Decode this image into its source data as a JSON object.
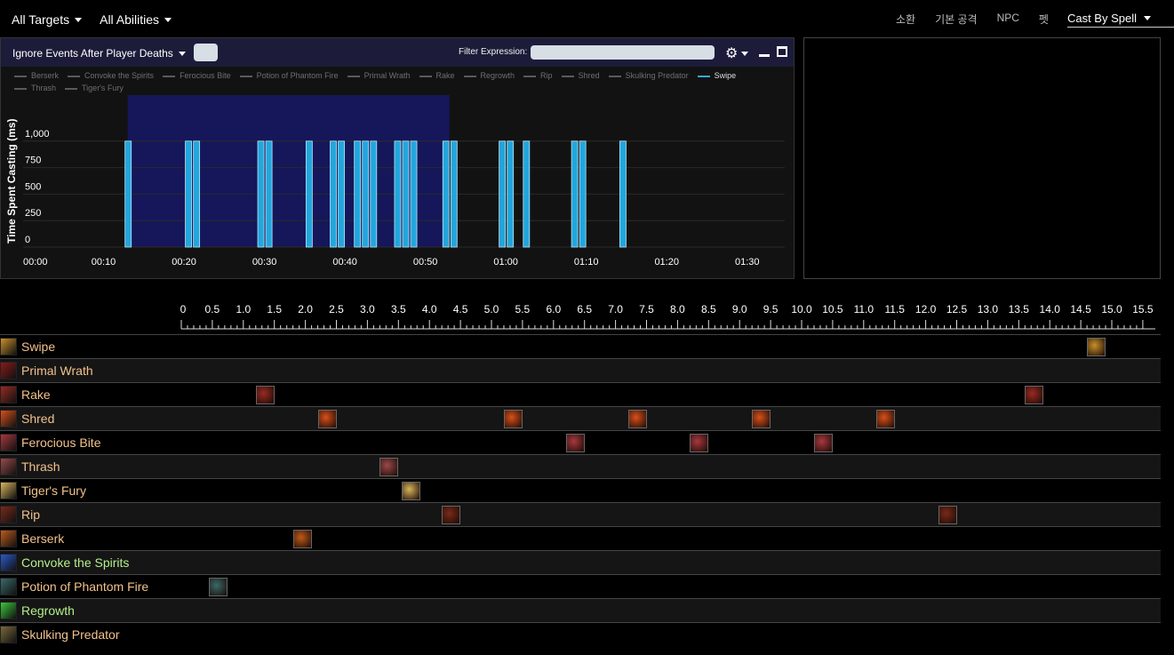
{
  "topbar": {
    "targets": "All Targets",
    "abilities": "All Abilities",
    "tabs": [
      "소환",
      "기본 공격",
      "NPC",
      "펫"
    ],
    "cast_by": "Cast By Spell"
  },
  "panel": {
    "ignore_label": "Ignore Events After Player Deaths",
    "filter_label": "Filter Expression:",
    "filter_value": ""
  },
  "legend": [
    {
      "name": "Berserk",
      "active": false
    },
    {
      "name": "Convoke the Spirits",
      "active": false
    },
    {
      "name": "Ferocious Bite",
      "active": false
    },
    {
      "name": "Potion of Phantom Fire",
      "active": false
    },
    {
      "name": "Primal Wrath",
      "active": false
    },
    {
      "name": "Rake",
      "active": false
    },
    {
      "name": "Regrowth",
      "active": false
    },
    {
      "name": "Rip",
      "active": false
    },
    {
      "name": "Shred",
      "active": false
    },
    {
      "name": "Skulking Predator",
      "active": false
    },
    {
      "name": "Swipe",
      "active": true
    },
    {
      "name": "Thrash",
      "active": false
    },
    {
      "name": "Tiger's Fury",
      "active": false
    }
  ],
  "chart_data": {
    "type": "bar",
    "ylabel": "Time Spent Casting (ms)",
    "y_ticks": [
      "0",
      "250",
      "500",
      "750",
      "1,000"
    ],
    "ylim": [
      0,
      1250
    ],
    "x_ticks": [
      "00:00",
      "00:10",
      "00:20",
      "00:30",
      "00:40",
      "00:50",
      "01:00",
      "01:10",
      "01:20",
      "01:30"
    ],
    "xlim_seconds": [
      0,
      95
    ],
    "highlight_seconds": [
      13,
      53
    ],
    "series": [
      {
        "name": "Swipe",
        "color": "#22a6dd",
        "x_seconds": [
          13,
          20.5,
          21.5,
          29.5,
          30.5,
          35.5,
          38.5,
          39.5,
          41.5,
          42.5,
          43.5,
          46.5,
          47.5,
          48.5,
          52.5,
          53.5,
          59.5,
          60.5,
          62.5,
          68.5,
          69.5,
          74.5
        ],
        "values": [
          1000,
          1000,
          1000,
          1000,
          1000,
          1000,
          1000,
          1000,
          1000,
          1000,
          1000,
          1000,
          1000,
          1000,
          1000,
          1000,
          1000,
          1000,
          1000,
          1000,
          1000,
          1000
        ]
      }
    ]
  },
  "timeline": {
    "ruler_labels": [
      "0",
      "0.5",
      "1.0",
      "1.5",
      "2.0",
      "2.5",
      "3.0",
      "3.5",
      "4.0",
      "4.5",
      "5.0",
      "5.5",
      "6.0",
      "6.5",
      "7.0",
      "7.5",
      "8.0",
      "8.5",
      "9.0",
      "9.5",
      "10.0",
      "10.5",
      "11.0",
      "11.5",
      "12.0",
      "12.5",
      "13.0",
      "13.5",
      "14.0",
      "14.5",
      "15.0",
      "15.5"
    ],
    "abilities": [
      {
        "name": "Swipe",
        "color": "#c8902a",
        "green": false,
        "casts": [
          14.6
        ]
      },
      {
        "name": "Primal Wrath",
        "color": "#8a1a1a",
        "green": false,
        "casts": []
      },
      {
        "name": "Rake",
        "color": "#9a2a22",
        "green": false,
        "casts": [
          1.2,
          13.6
        ]
      },
      {
        "name": "Shred",
        "color": "#d8501a",
        "green": false,
        "casts": [
          2.2,
          5.2,
          7.2,
          9.2,
          11.2
        ]
      },
      {
        "name": "Ferocious Bite",
        "color": "#a8383e",
        "green": false,
        "casts": [
          6.2,
          8.2,
          10.2
        ]
      },
      {
        "name": "Thrash",
        "color": "#9a4a4a",
        "green": false,
        "casts": [
          3.2
        ]
      },
      {
        "name": "Tiger's Fury",
        "color": "#d8b45a",
        "green": false,
        "casts": [
          3.55
        ]
      },
      {
        "name": "Rip",
        "color": "#7a2a1a",
        "green": false,
        "casts": [
          4.2,
          12.2
        ]
      },
      {
        "name": "Berserk",
        "color": "#c05a1a",
        "green": false,
        "casts": [
          1.8
        ]
      },
      {
        "name": "Convoke the Spirits",
        "color": "#2a5ac8",
        "green": true,
        "casts": []
      },
      {
        "name": "Potion of Phantom Fire",
        "color": "#3a6a6a",
        "green": false,
        "casts": [
          0.45
        ]
      },
      {
        "name": "Regrowth",
        "color": "#3ac83a",
        "green": true,
        "casts": []
      },
      {
        "name": "Skulking Predator",
        "color": "#7a6a3a",
        "green": false,
        "casts": []
      }
    ]
  }
}
